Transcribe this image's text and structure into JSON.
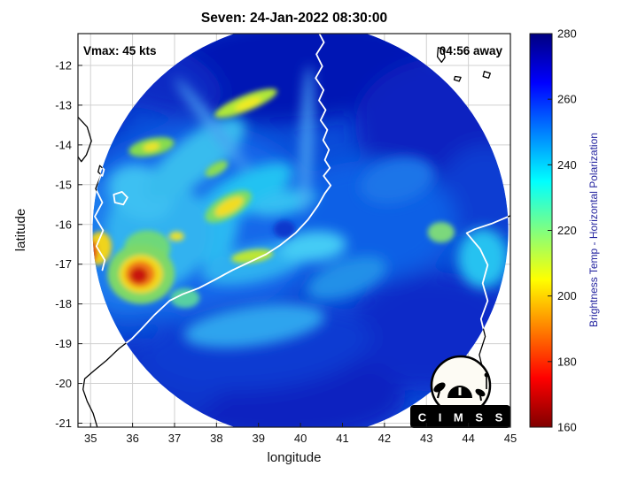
{
  "title": "Seven: 24-Jan-2022 08:30:00",
  "annotations": {
    "vmax": "Vmax: 45 kts",
    "time_away": "04:56 away"
  },
  "logo": {
    "text": "C I M S S"
  },
  "style": {
    "grid_color": "#d0d0d0",
    "axis_color": "#1a1a1a",
    "coast_inside_color": "#ffffff",
    "coast_outside_color": "#000000"
  },
  "colorbar": {
    "label": "Brightness Temp - Horizontal Polarization",
    "min": 160,
    "max": 280,
    "ticks": [
      280,
      260,
      240,
      220,
      200,
      180,
      160
    ],
    "stops": [
      [
        0,
        "#000080"
      ],
      [
        12.5,
        "#0000ff"
      ],
      [
        25,
        "#0080ff"
      ],
      [
        37.5,
        "#00ffff"
      ],
      [
        50,
        "#80ff80"
      ],
      [
        62.5,
        "#ffff00"
      ],
      [
        75,
        "#ff8000"
      ],
      [
        87.5,
        "#ff0000"
      ],
      [
        100,
        "#800000"
      ]
    ]
  },
  "chart_data": {
    "type": "heatmap",
    "title": "Seven: 24-Jan-2022 08:30:00",
    "xlabel": "longitude",
    "ylabel": "latitude",
    "xlim": [
      34.7,
      45.0
    ],
    "ylim": [
      -21.1,
      -11.2
    ],
    "xticks": [
      35,
      36,
      37,
      38,
      39,
      40,
      41,
      42,
      43,
      44,
      45
    ],
    "yticks": [
      -12,
      -13,
      -14,
      -15,
      -16,
      -17,
      -18,
      -19,
      -20,
      -21
    ],
    "grid": true,
    "colorbar_label": "Brightness Temp - Horizontal Polarization",
    "value_range": [
      160,
      280
    ],
    "base_color": "#0a4cd8",
    "swath_circle": {
      "lon": 40.0,
      "lat": -16.15,
      "radius_deg": 4.95
    },
    "storm_center": {
      "lon": 39.6,
      "lat": -16.1
    },
    "features": [
      [
        39.8,
        -12.1,
        3.4,
        1.35,
        -4,
        "#0418b4",
        "wash"
      ],
      [
        36.5,
        -12.25,
        1.7,
        0.85,
        20,
        "#0a2cc4",
        "wash"
      ],
      [
        34.95,
        -13.0,
        1.0,
        0.9,
        0,
        "#0a2cc4",
        "wash"
      ],
      [
        43.4,
        -13.5,
        2.1,
        1.7,
        0,
        "#0722c0",
        "wash"
      ],
      [
        44.4,
        -15.2,
        1.1,
        1.2,
        0,
        "#0e3ed2",
        "wash"
      ],
      [
        43.2,
        -18.7,
        2.1,
        1.5,
        0,
        "#0a2cc8",
        "wash"
      ],
      [
        39.3,
        -20.25,
        3.2,
        1.2,
        2,
        "#0722c0",
        "wash"
      ],
      [
        36.4,
        -19.9,
        1.7,
        1.0,
        10,
        "#0c36cc",
        "wash"
      ],
      [
        37.6,
        -16.0,
        2.9,
        2.4,
        0,
        "#1668ea",
        "wash"
      ],
      [
        41.6,
        -15.9,
        2.1,
        1.5,
        0,
        "#1160e6",
        "wash"
      ],
      [
        39.0,
        -19.05,
        2.7,
        1.1,
        -5,
        "#0b3ad2",
        "wash"
      ],
      [
        35.9,
        -16.4,
        1.5,
        1.9,
        0,
        "#1f7cee",
        "wash"
      ],
      [
        38.6,
        -15.25,
        1.35,
        0.5,
        -28,
        "#22c2f2",
        "mid"
      ],
      [
        37.95,
        -16.1,
        0.55,
        0.95,
        12,
        "#2ab8f2",
        "mid"
      ],
      [
        38.9,
        -17.0,
        1.3,
        0.45,
        -12,
        "#2fb0f0",
        "mid"
      ],
      [
        40.3,
        -16.55,
        0.8,
        0.38,
        -5,
        "#45ccf5",
        "mid"
      ],
      [
        39.6,
        -15.45,
        0.8,
        0.3,
        -12,
        "#34c0f2",
        "mid"
      ],
      [
        36.6,
        -16.2,
        1.25,
        1.35,
        0,
        "#30b2f0",
        "mid"
      ],
      [
        36.2,
        -15.2,
        0.8,
        0.65,
        25,
        "#3cc0f2",
        "mid"
      ],
      [
        37.5,
        -14.35,
        1.45,
        0.55,
        -38,
        "#38bcee",
        "mid"
      ],
      [
        38.9,
        -18.55,
        1.7,
        0.5,
        -8,
        "#2ea4ee",
        "mid"
      ],
      [
        41.1,
        -17.35,
        1.0,
        0.45,
        -20,
        "#2490e8",
        "mid"
      ],
      [
        44.35,
        -16.85,
        0.6,
        0.75,
        0,
        "#28c2f0",
        "mid"
      ],
      [
        40.15,
        -13.9,
        0.14,
        1.9,
        2,
        "#4aa2f2",
        "mid"
      ],
      [
        37.9,
        -13.5,
        0.12,
        1.5,
        -38,
        "#4aa2f2",
        "mid"
      ],
      [
        42.3,
        -14.9,
        0.9,
        0.55,
        -15,
        "#1d74e8",
        "mid"
      ],
      [
        38.7,
        -12.95,
        0.8,
        0.2,
        -22,
        "#b0e838",
        "core"
      ],
      [
        38.75,
        -12.97,
        0.34,
        0.11,
        -22,
        "#f0ea24",
        "core"
      ],
      [
        36.45,
        -14.05,
        0.55,
        0.22,
        -12,
        "#86dc4e",
        "core"
      ],
      [
        36.45,
        -14.05,
        0.2,
        0.1,
        -12,
        "#eee428",
        "core"
      ],
      [
        38.28,
        -15.55,
        0.62,
        0.28,
        -30,
        "#7cdc66",
        "core"
      ],
      [
        38.3,
        -15.55,
        0.38,
        0.16,
        -30,
        "#f2dc20",
        "core"
      ],
      [
        38.85,
        -16.8,
        0.5,
        0.16,
        -8,
        "#bce634",
        "core"
      ],
      [
        36.35,
        -16.6,
        0.55,
        0.45,
        0,
        "#6ed87a",
        "core"
      ],
      [
        35.2,
        -16.6,
        0.3,
        0.42,
        10,
        "#f0d41e",
        "core"
      ],
      [
        35.0,
        -16.68,
        0.16,
        0.3,
        0,
        "#de3414",
        "core"
      ],
      [
        36.2,
        -17.25,
        0.8,
        0.75,
        0,
        "#7ed868",
        "core"
      ],
      [
        36.2,
        -17.25,
        0.52,
        0.48,
        0,
        "#f2d81e",
        "core"
      ],
      [
        36.18,
        -17.25,
        0.35,
        0.33,
        0,
        "#f07818",
        "core"
      ],
      [
        36.15,
        -17.28,
        0.21,
        0.2,
        0,
        "#c81408",
        "core"
      ],
      [
        43.35,
        -16.2,
        0.32,
        0.26,
        0,
        "#7cd87c",
        "core"
      ],
      [
        37.25,
        -17.85,
        0.35,
        0.25,
        0,
        "#58d0a2",
        "core"
      ],
      [
        37.05,
        -16.3,
        0.18,
        0.12,
        0,
        "#e8e030",
        "core"
      ],
      [
        38.0,
        -14.6,
        0.3,
        0.14,
        -30,
        "#8adc54",
        "core"
      ],
      [
        39.62,
        -16.12,
        0.26,
        0.22,
        0,
        "#0a38cc",
        "core"
      ]
    ],
    "coastlines": [
      {
        "name": "mozambique-coast",
        "closed": false,
        "points": [
          [
            40.45,
            -11.2
          ],
          [
            40.56,
            -11.42
          ],
          [
            40.38,
            -11.72
          ],
          [
            40.52,
            -12.02
          ],
          [
            40.36,
            -12.32
          ],
          [
            40.55,
            -12.62
          ],
          [
            40.44,
            -12.88
          ],
          [
            40.6,
            -13.12
          ],
          [
            40.48,
            -13.38
          ],
          [
            40.64,
            -13.62
          ],
          [
            40.54,
            -13.88
          ],
          [
            40.68,
            -14.12
          ],
          [
            40.58,
            -14.38
          ],
          [
            40.7,
            -14.58
          ],
          [
            40.55,
            -14.78
          ],
          [
            40.72,
            -15.02
          ],
          [
            40.58,
            -15.22
          ],
          [
            40.42,
            -15.52
          ],
          [
            40.18,
            -15.88
          ],
          [
            39.88,
            -16.22
          ],
          [
            39.52,
            -16.52
          ],
          [
            39.18,
            -16.75
          ],
          [
            38.78,
            -16.95
          ],
          [
            38.38,
            -17.15
          ],
          [
            37.98,
            -17.38
          ],
          [
            37.58,
            -17.6
          ],
          [
            37.18,
            -17.76
          ],
          [
            36.88,
            -17.92
          ],
          [
            36.52,
            -18.28
          ],
          [
            36.22,
            -18.62
          ],
          [
            35.98,
            -18.88
          ],
          [
            35.68,
            -19.12
          ],
          [
            35.38,
            -19.42
          ],
          [
            35.08,
            -19.68
          ],
          [
            34.86,
            -19.88
          ],
          [
            34.82,
            -20.15
          ],
          [
            34.92,
            -20.45
          ],
          [
            35.06,
            -20.75
          ],
          [
            35.16,
            -21.1
          ]
        ]
      },
      {
        "name": "madagascar-coast",
        "closed": false,
        "points": [
          [
            45.0,
            -15.78
          ],
          [
            44.55,
            -15.98
          ],
          [
            44.15,
            -16.12
          ],
          [
            43.96,
            -16.22
          ],
          [
            44.28,
            -16.62
          ],
          [
            44.46,
            -17.02
          ],
          [
            44.34,
            -17.48
          ],
          [
            44.46,
            -17.92
          ],
          [
            44.3,
            -18.38
          ],
          [
            44.4,
            -18.82
          ],
          [
            44.26,
            -19.28
          ],
          [
            44.36,
            -19.72
          ],
          [
            44.24,
            -20.18
          ],
          [
            43.96,
            -20.58
          ],
          [
            44.06,
            -20.98
          ],
          [
            44.0,
            -21.1
          ]
        ]
      },
      {
        "name": "lake-malawi",
        "closed": false,
        "points": [
          [
            34.7,
            -13.3
          ],
          [
            34.92,
            -13.55
          ],
          [
            35.02,
            -13.9
          ],
          [
            34.9,
            -14.25
          ],
          [
            34.78,
            -14.42
          ],
          [
            34.7,
            -14.3
          ]
        ]
      },
      {
        "name": "lake-malombe",
        "closed": true,
        "points": [
          [
            35.22,
            -14.52
          ],
          [
            35.32,
            -14.62
          ],
          [
            35.28,
            -14.78
          ],
          [
            35.18,
            -14.68
          ]
        ]
      },
      {
        "name": "shire-river",
        "closed": false,
        "points": [
          [
            35.24,
            -14.78
          ],
          [
            35.12,
            -15.1
          ],
          [
            35.28,
            -15.45
          ],
          [
            35.1,
            -15.8
          ],
          [
            35.3,
            -16.15
          ],
          [
            35.14,
            -16.55
          ],
          [
            35.34,
            -16.9
          ],
          [
            35.28,
            -17.15
          ]
        ]
      },
      {
        "name": "lake-chilwa",
        "closed": true,
        "points": [
          [
            35.55,
            -15.25
          ],
          [
            35.75,
            -15.18
          ],
          [
            35.88,
            -15.32
          ],
          [
            35.78,
            -15.5
          ],
          [
            35.58,
            -15.45
          ]
        ]
      },
      {
        "name": "grande-comore-island",
        "closed": true,
        "points": [
          [
            43.28,
            -11.55
          ],
          [
            43.4,
            -11.6
          ],
          [
            43.44,
            -11.8
          ],
          [
            43.36,
            -11.92
          ],
          [
            43.26,
            -11.78
          ]
        ]
      },
      {
        "name": "moheli-island",
        "closed": true,
        "points": [
          [
            43.68,
            -12.28
          ],
          [
            43.82,
            -12.3
          ],
          [
            43.78,
            -12.4
          ],
          [
            43.66,
            -12.36
          ]
        ]
      },
      {
        "name": "anjouan-island",
        "closed": true,
        "points": [
          [
            44.38,
            -12.15
          ],
          [
            44.52,
            -12.2
          ],
          [
            44.48,
            -12.32
          ],
          [
            44.35,
            -12.28
          ]
        ]
      }
    ]
  }
}
